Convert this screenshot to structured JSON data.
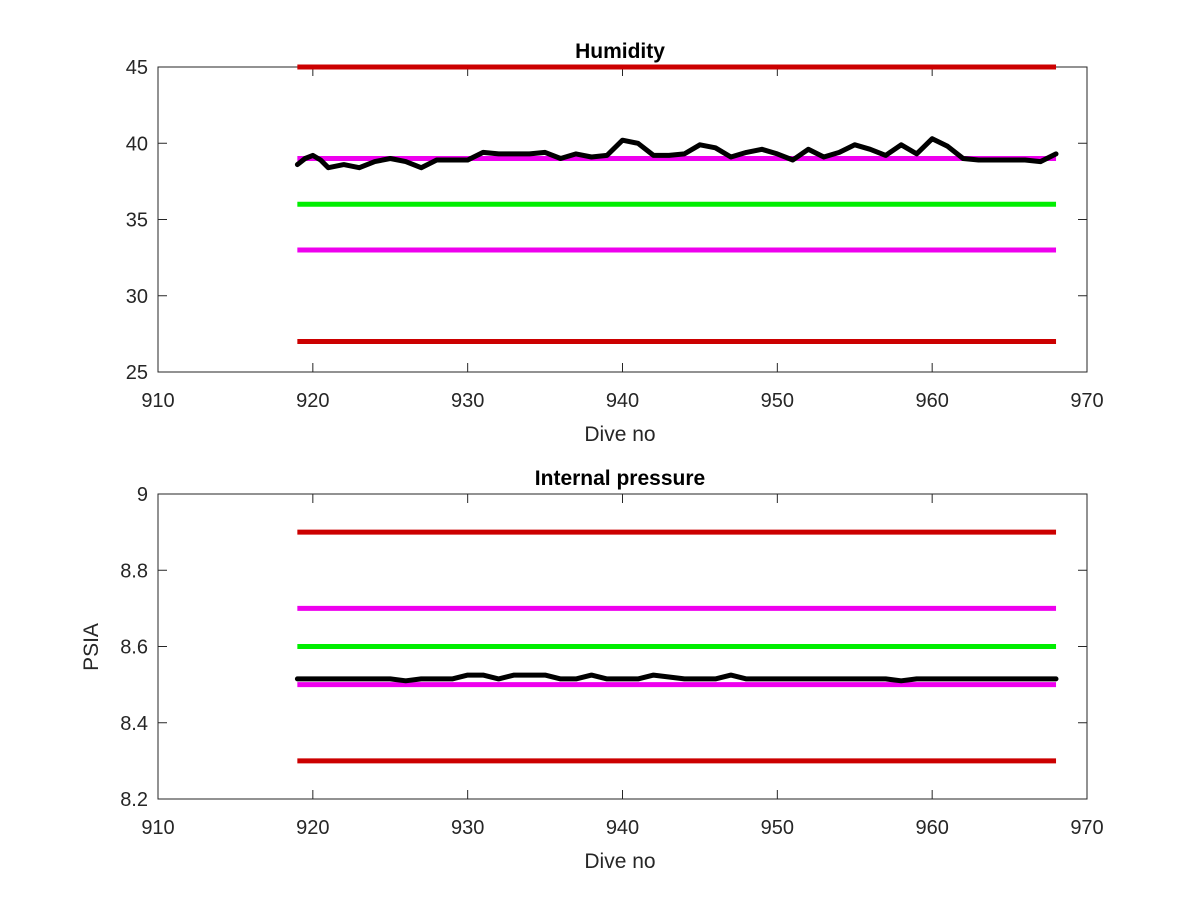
{
  "chart_data": [
    {
      "type": "line",
      "title": "Humidity",
      "xlabel": "Dive no",
      "ylabel": "",
      "xlim": [
        910,
        970
      ],
      "ylim": [
        25,
        45
      ],
      "xticks": [
        910,
        920,
        930,
        940,
        950,
        960,
        970
      ],
      "yticks": [
        25,
        30,
        35,
        40,
        45
      ],
      "xtick_labels": [
        "910",
        "920",
        "930",
        "940",
        "950",
        "960",
        "970"
      ],
      "ytick_labels": [
        "25",
        "30",
        "35",
        "40",
        "45"
      ],
      "grid": false,
      "reference_lines": [
        {
          "y": 45,
          "color": "#cc0000",
          "x_range": [
            919,
            968
          ]
        },
        {
          "y": 39,
          "color": "#ee00ee",
          "x_range": [
            919,
            968
          ]
        },
        {
          "y": 36,
          "color": "#00ee00",
          "x_range": [
            919,
            968
          ]
        },
        {
          "y": 33,
          "color": "#ee00ee",
          "x_range": [
            919,
            968
          ]
        },
        {
          "y": 27,
          "color": "#cc0000",
          "x_range": [
            919,
            968
          ]
        }
      ],
      "series": [
        {
          "color": "#000000",
          "x": [
            919,
            919.5,
            920,
            920.5,
            921,
            922,
            923,
            924,
            925,
            926,
            927,
            928,
            929,
            930,
            931,
            932,
            933,
            934,
            935,
            936,
            937,
            938,
            939,
            940,
            941,
            942,
            943,
            944,
            945,
            946,
            947,
            948,
            949,
            950,
            951,
            952,
            953,
            954,
            955,
            956,
            957,
            958,
            959,
            960,
            961,
            962,
            963,
            964,
            965,
            966,
            967,
            968
          ],
          "y": [
            38.6,
            39.0,
            39.2,
            38.9,
            38.4,
            38.6,
            38.4,
            38.8,
            39.0,
            38.8,
            38.4,
            38.9,
            38.9,
            38.9,
            39.4,
            39.3,
            39.3,
            39.3,
            39.4,
            39.0,
            39.3,
            39.1,
            39.2,
            40.2,
            40.0,
            39.2,
            39.2,
            39.3,
            39.9,
            39.7,
            39.1,
            39.4,
            39.6,
            39.3,
            38.9,
            39.6,
            39.1,
            39.4,
            39.9,
            39.6,
            39.2,
            39.9,
            39.3,
            40.3,
            39.8,
            39.0,
            38.9,
            38.9,
            38.9,
            38.9,
            38.8,
            39.3
          ]
        }
      ]
    },
    {
      "type": "line",
      "title": "Internal pressure",
      "xlabel": "Dive no",
      "ylabel": "PSIA",
      "xlim": [
        910,
        970
      ],
      "ylim": [
        8.2,
        9.0
      ],
      "xticks": [
        910,
        920,
        930,
        940,
        950,
        960,
        970
      ],
      "yticks": [
        8.2,
        8.4,
        8.6,
        8.8,
        9.0
      ],
      "xtick_labels": [
        "910",
        "920",
        "930",
        "940",
        "950",
        "960",
        "970"
      ],
      "ytick_labels": [
        "8.2",
        "8.4",
        "8.6",
        "8.8",
        "9"
      ],
      "grid": false,
      "reference_lines": [
        {
          "y": 8.9,
          "color": "#cc0000",
          "x_range": [
            919,
            968
          ]
        },
        {
          "y": 8.7,
          "color": "#ee00ee",
          "x_range": [
            919,
            968
          ]
        },
        {
          "y": 8.6,
          "color": "#00ee00",
          "x_range": [
            919,
            968
          ]
        },
        {
          "y": 8.5,
          "color": "#ee00ee",
          "x_range": [
            919,
            968
          ]
        },
        {
          "y": 8.3,
          "color": "#cc0000",
          "x_range": [
            919,
            968
          ]
        }
      ],
      "series": [
        {
          "color": "#000000",
          "x": [
            919,
            920,
            921,
            922,
            923,
            924,
            925,
            926,
            927,
            928,
            929,
            930,
            931,
            932,
            933,
            934,
            935,
            936,
            937,
            938,
            939,
            940,
            941,
            942,
            943,
            944,
            945,
            946,
            947,
            948,
            949,
            950,
            951,
            952,
            953,
            954,
            955,
            956,
            957,
            958,
            959,
            960,
            961,
            962,
            963,
            964,
            965,
            966,
            967,
            968
          ],
          "y": [
            8.515,
            8.515,
            8.515,
            8.515,
            8.515,
            8.515,
            8.515,
            8.51,
            8.515,
            8.515,
            8.515,
            8.525,
            8.525,
            8.515,
            8.525,
            8.525,
            8.525,
            8.515,
            8.515,
            8.525,
            8.515,
            8.515,
            8.515,
            8.525,
            8.52,
            8.515,
            8.515,
            8.515,
            8.525,
            8.515,
            8.515,
            8.515,
            8.515,
            8.515,
            8.515,
            8.515,
            8.515,
            8.515,
            8.515,
            8.51,
            8.515,
            8.515,
            8.515,
            8.515,
            8.515,
            8.515,
            8.515,
            8.515,
            8.515,
            8.515
          ]
        }
      ]
    }
  ]
}
